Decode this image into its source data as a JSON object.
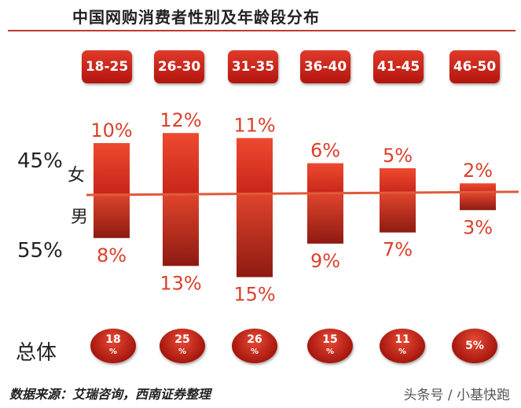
{
  "title": "中国网购消费者性别及年龄段分布",
  "female": {
    "label": "女",
    "share": "45%"
  },
  "male": {
    "label": "男",
    "share": "55%"
  },
  "total_label": "总体",
  "source": "数据来源：艾瑞咨询，西南证券整理",
  "watermark": "头条号 / 小基快跑",
  "colors": {
    "bar_top": "#e8402b",
    "bar_bottom": "#8e1a12",
    "label": "#d9402b",
    "line": "#e05a38"
  },
  "chart_data": {
    "type": "bar",
    "categories": [
      "18-25",
      "26-30",
      "31-35",
      "36-40",
      "41-45",
      "46-50"
    ],
    "series": [
      {
        "name": "女",
        "values": [
          10,
          12,
          11,
          6,
          5,
          2
        ]
      },
      {
        "name": "男",
        "values": [
          8,
          13,
          15,
          9,
          7,
          3
        ]
      }
    ],
    "value_labels_female": [
      "10%",
      "12%",
      "11%",
      "6%",
      "5%",
      "2%"
    ],
    "value_labels_male": [
      "8%",
      "13%",
      "15%",
      "9%",
      "7%",
      "3%"
    ],
    "totals": [
      {
        "value": "18",
        "unit": "%"
      },
      {
        "value": "25",
        "unit": "%"
      },
      {
        "value": "26",
        "unit": "%"
      },
      {
        "value": "15",
        "unit": "%"
      },
      {
        "value": "11",
        "unit": "%"
      },
      {
        "value": "5%",
        "unit": ""
      }
    ]
  }
}
